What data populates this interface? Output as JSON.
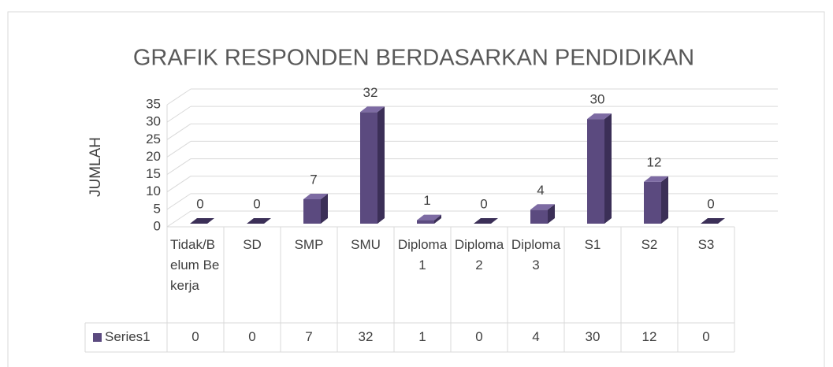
{
  "chart_data": {
    "type": "bar3d",
    "title": "GRAFIK RESPONDEN BERDASARKAN PENDIDIKAN",
    "y_label": "JUMLAH",
    "categories": [
      "Tidak/Belum Bekerja",
      "SD",
      "SMP",
      "SMU",
      "Diploma 1",
      "Diploma 2",
      "Diploma 3",
      "S1",
      "S2",
      "S3"
    ],
    "series": [
      {
        "name": "Series1",
        "color": "#5b4a7f",
        "values": [
          0,
          0,
          7,
          32,
          1,
          0,
          4,
          30,
          12,
          0
        ]
      }
    ],
    "ylim": [
      0,
      35
    ],
    "yticks": [
      0,
      5,
      10,
      15,
      20,
      25,
      30,
      35
    ],
    "grid": true,
    "data_table": true
  }
}
